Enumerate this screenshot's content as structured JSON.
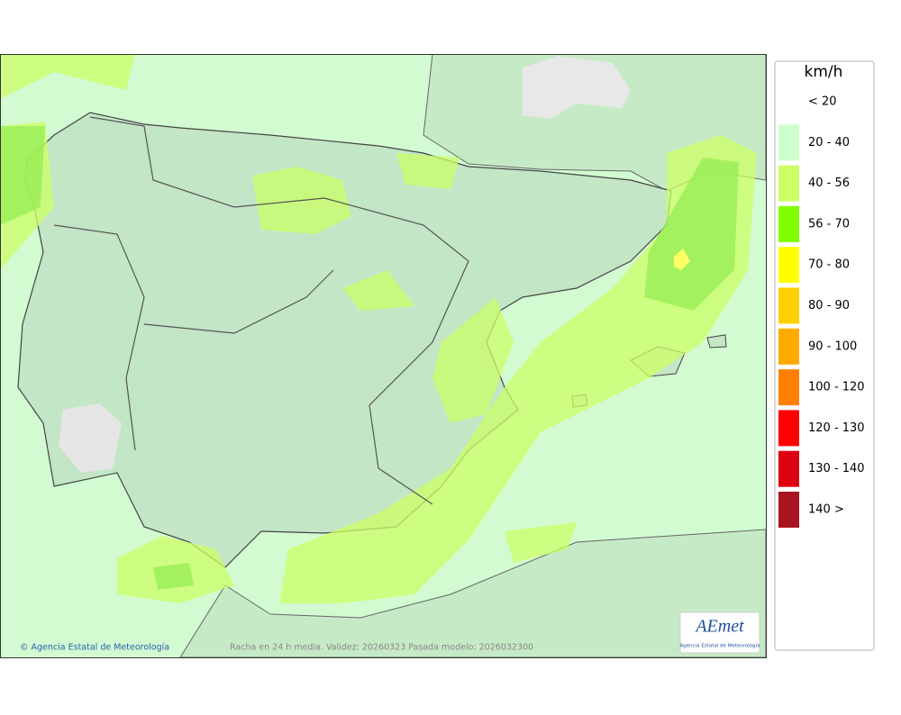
{
  "legend": {
    "unit": "km/h",
    "items": [
      {
        "label": "< 20"
      },
      {
        "label": "20 - 40",
        "color": "#ccffcc"
      },
      {
        "label": "40 - 56",
        "color": "#ccff66"
      },
      {
        "label": "56 - 70",
        "color": "#80ff00"
      },
      {
        "label": "70 - 80",
        "color": "#ffff00"
      },
      {
        "label": "80 - 90",
        "color": "#ffd000"
      },
      {
        "label": "90 - 100",
        "color": "#ffaa00"
      },
      {
        "label": "100 - 120",
        "color": "#ff8000"
      },
      {
        "label": "120 - 130",
        "color": "#ff0000"
      },
      {
        "label": "130 - 140",
        "color": "#dd0010"
      },
      {
        "label": "140 >",
        "color": "#aa1420"
      }
    ]
  },
  "footer": {
    "credit": "© Agencia Estatal de Meteorología",
    "caption": "Racha en 24 h media. Validez: 20260323 Pasada modelo: 2026032300"
  },
  "logo": {
    "name": "AEmet",
    "subtitle": "Agencia Estatal de Meteorología"
  }
}
